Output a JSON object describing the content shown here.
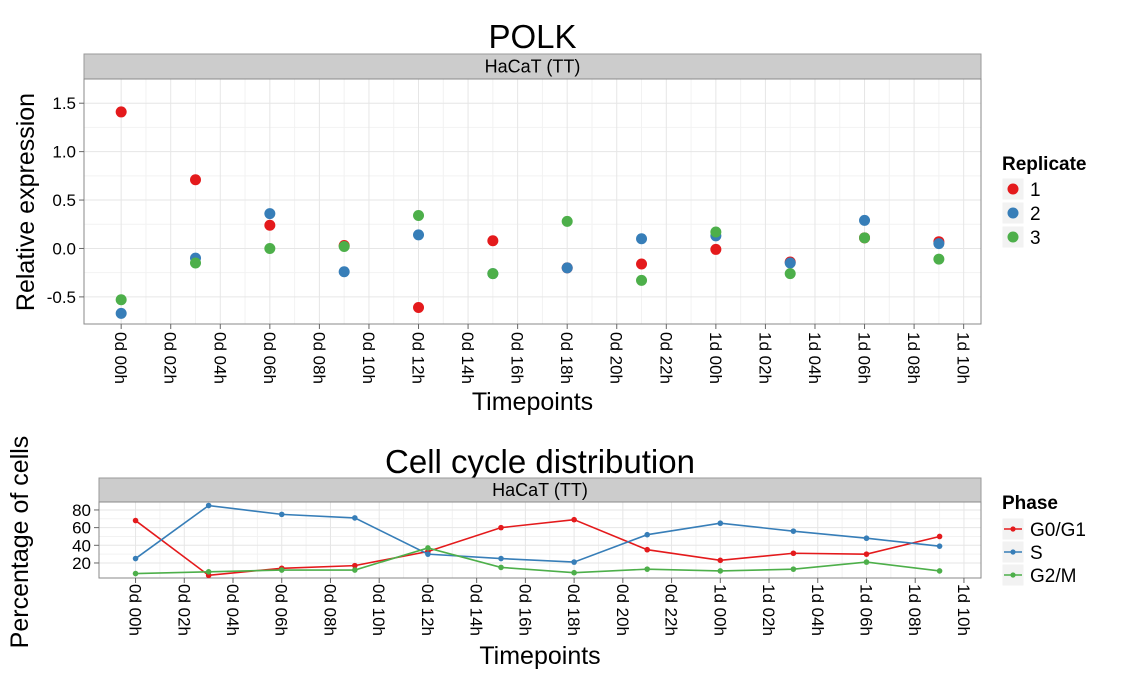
{
  "colors": {
    "red": "#e41a1c",
    "blue": "#377eb8",
    "green": "#4daf4a"
  },
  "chart_data": [
    {
      "type": "scatter",
      "title": "POLK",
      "facet": "HaCaT (TT)",
      "xlabel": "Timepoints",
      "ylabel": "Relative expression",
      "x_ticks": [
        "0d 00h",
        "0d 02h",
        "0d 04h",
        "0d 06h",
        "0d 08h",
        "0d 10h",
        "0d 12h",
        "0d 14h",
        "0d 16h",
        "0d 18h",
        "0d 20h",
        "0d 22h",
        "1d 00h",
        "1d 02h",
        "1d 04h",
        "1d 06h",
        "1d 08h",
        "1d 10h"
      ],
      "x_tick_hours": [
        0,
        2,
        4,
        6,
        8,
        10,
        12,
        14,
        16,
        18,
        20,
        22,
        24,
        26,
        28,
        30,
        32,
        34
      ],
      "y_ticks": [
        "-0.5",
        "0.0",
        "0.5",
        "1.0",
        "1.5"
      ],
      "y_tick_values": [
        -0.5,
        0.0,
        0.5,
        1.0,
        1.5
      ],
      "xlim": [
        -1.5,
        34.7
      ],
      "ylim": [
        -0.78,
        1.75
      ],
      "legend_title": "Replicate",
      "series": [
        {
          "name": "1",
          "color": "#e41a1c",
          "x": [
            0,
            3,
            6,
            9,
            12,
            15,
            18,
            21,
            24,
            27,
            30,
            33
          ],
          "y": [
            1.41,
            0.71,
            0.24,
            0.03,
            -0.61,
            0.08,
            -0.2,
            -0.16,
            -0.01,
            -0.14,
            0.11,
            0.07
          ]
        },
        {
          "name": "2",
          "color": "#377eb8",
          "x": [
            0,
            3,
            6,
            9,
            12,
            15,
            18,
            21,
            24,
            27,
            30,
            33
          ],
          "y": [
            -0.67,
            -0.1,
            0.36,
            -0.24,
            0.14,
            -0.26,
            -0.2,
            0.1,
            0.13,
            -0.15,
            0.29,
            0.05
          ]
        },
        {
          "name": "3",
          "color": "#4daf4a",
          "x": [
            0,
            3,
            6,
            9,
            12,
            15,
            18,
            21,
            24,
            27,
            30,
            33
          ],
          "y": [
            -0.53,
            -0.15,
            0.0,
            0.02,
            0.34,
            -0.26,
            0.28,
            -0.33,
            0.17,
            -0.26,
            0.11,
            -0.11
          ]
        }
      ]
    },
    {
      "type": "line",
      "title": "Cell cycle distribution",
      "facet": "HaCaT (TT)",
      "xlabel": "Timepoints",
      "ylabel": "Percentage of cells",
      "x_ticks": [
        "0d 00h",
        "0d 02h",
        "0d 04h",
        "0d 06h",
        "0d 08h",
        "0d 10h",
        "0d 12h",
        "0d 14h",
        "0d 16h",
        "0d 18h",
        "0d 20h",
        "0d 22h",
        "1d 00h",
        "1d 02h",
        "1d 04h",
        "1d 06h",
        "1d 08h",
        "1d 10h"
      ],
      "x_tick_hours": [
        0,
        2,
        4,
        6,
        8,
        10,
        12,
        14,
        16,
        18,
        20,
        22,
        24,
        26,
        28,
        30,
        32,
        34
      ],
      "y_ticks": [
        "20",
        "40",
        "60",
        "80"
      ],
      "y_tick_values": [
        20,
        40,
        60,
        80
      ],
      "xlim": [
        -1.5,
        34.7
      ],
      "ylim": [
        3,
        89
      ],
      "legend_title": "Phase",
      "series": [
        {
          "name": "G0/G1",
          "color": "#e41a1c",
          "x": [
            0,
            3,
            6,
            9,
            12,
            15,
            18,
            21,
            24,
            27,
            30,
            33
          ],
          "y": [
            68,
            6,
            14,
            17,
            33,
            60,
            69,
            35,
            23,
            31,
            30,
            50
          ]
        },
        {
          "name": "S",
          "color": "#377eb8",
          "x": [
            0,
            3,
            6,
            9,
            12,
            15,
            18,
            21,
            24,
            27,
            30,
            33
          ],
          "y": [
            25,
            85,
            75,
            71,
            30,
            25,
            21,
            52,
            65,
            56,
            48,
            39
          ]
        },
        {
          "name": "G2/M",
          "color": "#4daf4a",
          "x": [
            0,
            3,
            6,
            9,
            12,
            15,
            18,
            21,
            24,
            27,
            30,
            33
          ],
          "y": [
            8,
            10,
            12,
            12,
            37,
            15,
            9,
            13,
            11,
            13,
            21,
            11
          ]
        }
      ]
    }
  ]
}
